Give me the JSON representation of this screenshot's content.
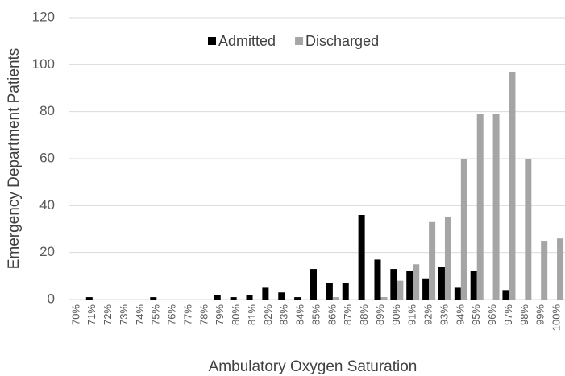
{
  "chart_data": {
    "type": "bar",
    "x_label": "Ambulatory Oxygen Saturation",
    "y_label": "Emergency Department Patients",
    "categories": [
      "70%",
      "71%",
      "72%",
      "73%",
      "74%",
      "75%",
      "76%",
      "77%",
      "78%",
      "79%",
      "80%",
      "81%",
      "82%",
      "83%",
      "84%",
      "85%",
      "86%",
      "87%",
      "88%",
      "89%",
      "90%",
      "91%",
      "92%",
      "93%",
      "94%",
      "95%",
      "96%",
      "97%",
      "98%",
      "99%",
      "100%"
    ],
    "series": [
      {
        "name": "Admitted",
        "color": "#000000",
        "values": [
          0,
          1,
          0,
          0,
          0,
          1,
          0,
          0,
          0,
          2,
          1,
          2,
          5,
          3,
          1,
          13,
          7,
          7,
          36,
          17,
          13,
          12,
          9,
          14,
          5,
          12,
          0,
          4,
          0,
          0,
          0
        ]
      },
      {
        "name": "Discharged",
        "color": "#a5a5a5",
        "values": [
          0,
          0,
          0,
          0,
          0,
          0,
          0,
          0,
          0,
          0,
          0,
          0,
          0,
          0,
          0,
          0,
          1,
          0,
          0,
          1,
          8,
          15,
          33,
          35,
          60,
          79,
          79,
          97,
          60,
          25,
          26
        ]
      }
    ],
    "ylim": [
      0,
      120
    ],
    "yticks": [
      0,
      20,
      40,
      60,
      80,
      100,
      120
    ],
    "grid": true,
    "legend": "top"
  }
}
